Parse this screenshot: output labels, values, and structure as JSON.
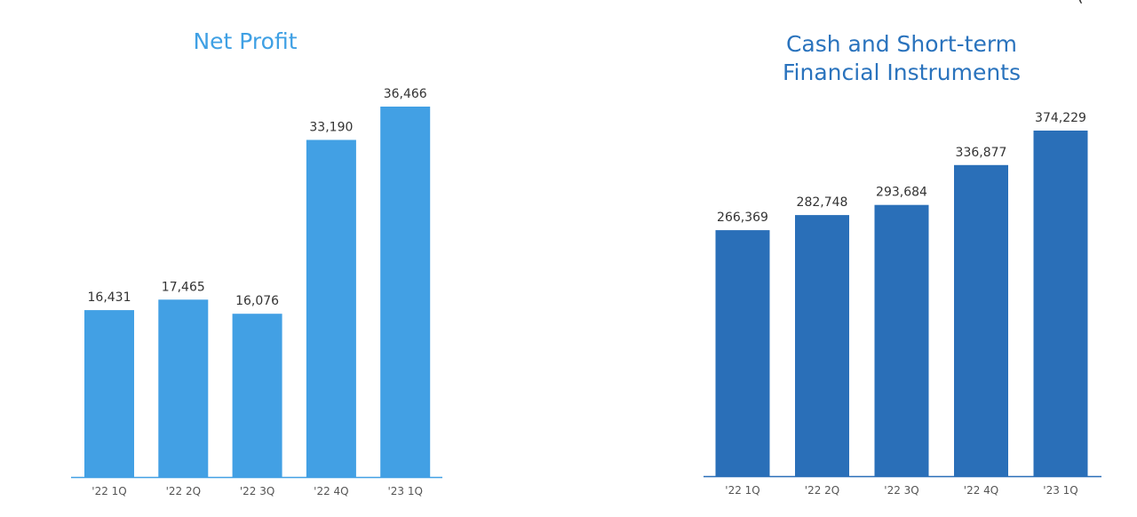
{
  "corner_mark": "(",
  "charts": [
    {
      "title": "Net Profit"
    },
    {
      "title": "Cash and Short-term\nFinancial Instruments"
    }
  ],
  "chart_data": [
    {
      "type": "bar",
      "title": "Net Profit",
      "categories": [
        "'22 1Q",
        "'22 2Q",
        "'22 3Q",
        "'22 4Q",
        "'23 1Q"
      ],
      "values": [
        16431,
        17465,
        16076,
        33190,
        36466
      ],
      "value_labels": [
        "16,431",
        "17,465",
        "16,076",
        "33,190",
        "36,466"
      ],
      "xlabel": "",
      "ylabel": "",
      "ylim": [
        0,
        40000
      ],
      "grid": false,
      "legend": "none",
      "bar_color": "#42a0e4"
    },
    {
      "type": "bar",
      "title": "Cash and Short-term Financial Instruments",
      "categories": [
        "'22 1Q",
        "'22 2Q",
        "'22 3Q",
        "'22 4Q",
        "'23 1Q"
      ],
      "values": [
        266369,
        282748,
        293684,
        336877,
        374229
      ],
      "value_labels": [
        "266,369",
        "282,748",
        "293,684",
        "336,877",
        "374,229"
      ],
      "xlabel": "",
      "ylabel": "",
      "ylim": [
        0,
        400000
      ],
      "grid": false,
      "legend": "none",
      "bar_color": "#2a6fb8"
    }
  ]
}
